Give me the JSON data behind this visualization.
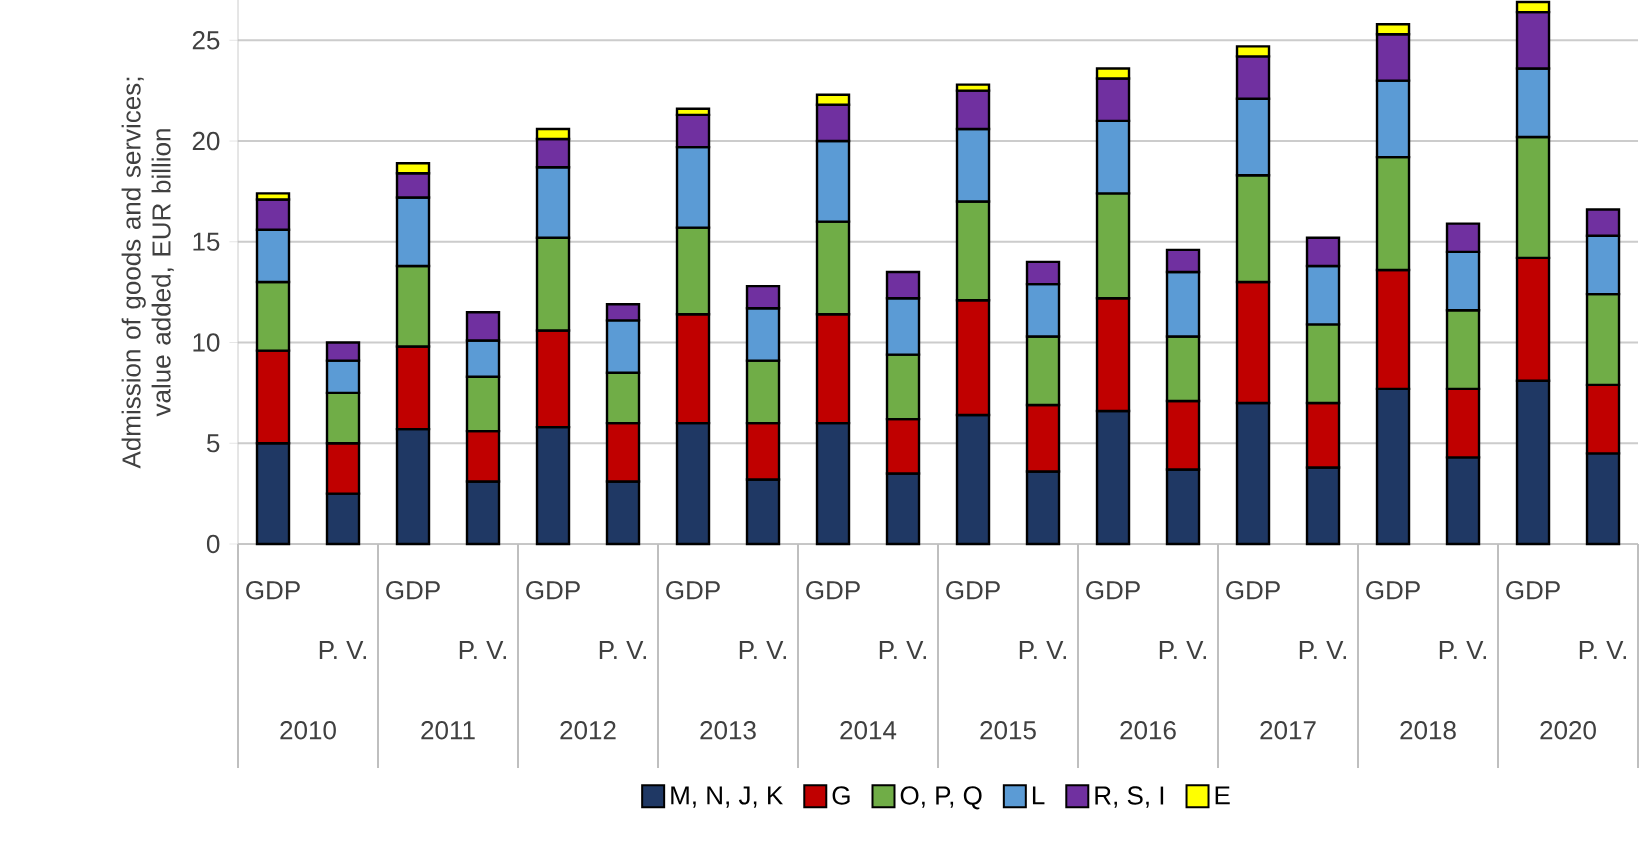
{
  "chart_data": {
    "type": "bar",
    "stacked": true,
    "ylabel": "Admission of goods and services; value added, EUR billion",
    "categories": [
      "GDP",
      "P. V.",
      "GDP",
      "P. V.",
      "GDP",
      "P. V.",
      "GDP",
      "P. V.",
      "GDP",
      "P. V.",
      "GDP",
      "P. V.",
      "GDP",
      "P. V.",
      "GDP",
      "P. V.",
      "GDP",
      "P. V.",
      "GDP",
      "P. V."
    ],
    "annotations": [
      "2010",
      "2011",
      "2012",
      "2013",
      "2014",
      "2015",
      "2016",
      "2017",
      "2018",
      "2020"
    ],
    "series": [
      {
        "name": "M, N, J, K",
        "color": "#1f3864",
        "values": [
          5.0,
          2.5,
          5.7,
          3.1,
          5.8,
          3.1,
          6.0,
          3.2,
          6.0,
          3.5,
          6.4,
          3.6,
          6.6,
          3.7,
          7.0,
          3.8,
          7.7,
          4.3,
          8.1,
          4.5
        ]
      },
      {
        "name": "G",
        "color": "#c00000",
        "values": [
          4.6,
          2.5,
          4.1,
          2.5,
          4.8,
          2.9,
          5.4,
          2.8,
          5.4,
          2.7,
          5.7,
          3.3,
          5.6,
          3.4,
          6.0,
          3.2,
          5.9,
          3.4,
          6.1,
          3.4
        ]
      },
      {
        "name": "O, P, Q",
        "color": "#70ad47",
        "values": [
          3.4,
          2.5,
          4.0,
          2.7,
          4.6,
          2.5,
          4.3,
          3.1,
          4.6,
          3.2,
          4.9,
          3.4,
          5.2,
          3.2,
          5.3,
          3.9,
          5.6,
          3.9,
          6.0,
          4.5
        ]
      },
      {
        "name": "L",
        "color": "#5b9bd5",
        "values": [
          2.6,
          1.6,
          3.4,
          1.8,
          3.5,
          2.6,
          4.0,
          2.6,
          4.0,
          2.8,
          3.6,
          2.6,
          3.6,
          3.2,
          3.8,
          2.9,
          3.8,
          2.9,
          3.4,
          2.9
        ]
      },
      {
        "name": "R, S, I",
        "color": "#7030a0",
        "values": [
          1.5,
          0.9,
          1.2,
          1.4,
          1.4,
          0.8,
          1.6,
          1.1,
          1.8,
          1.3,
          1.9,
          1.1,
          2.1,
          1.1,
          2.1,
          1.4,
          2.3,
          1.4,
          2.8,
          1.3
        ]
      },
      {
        "name": "E",
        "color": "#ffff00",
        "values": [
          0.3,
          null,
          0.5,
          null,
          0.5,
          null,
          0.3,
          null,
          0.5,
          null,
          0.3,
          null,
          0.5,
          null,
          0.5,
          null,
          0.5,
          null,
          0.5,
          null
        ]
      }
    ],
    "ylim": [
      0,
      27
    ],
    "yticks": [
      0,
      5,
      10,
      15,
      20,
      25
    ],
    "grid": "y",
    "legend": "bottom"
  }
}
